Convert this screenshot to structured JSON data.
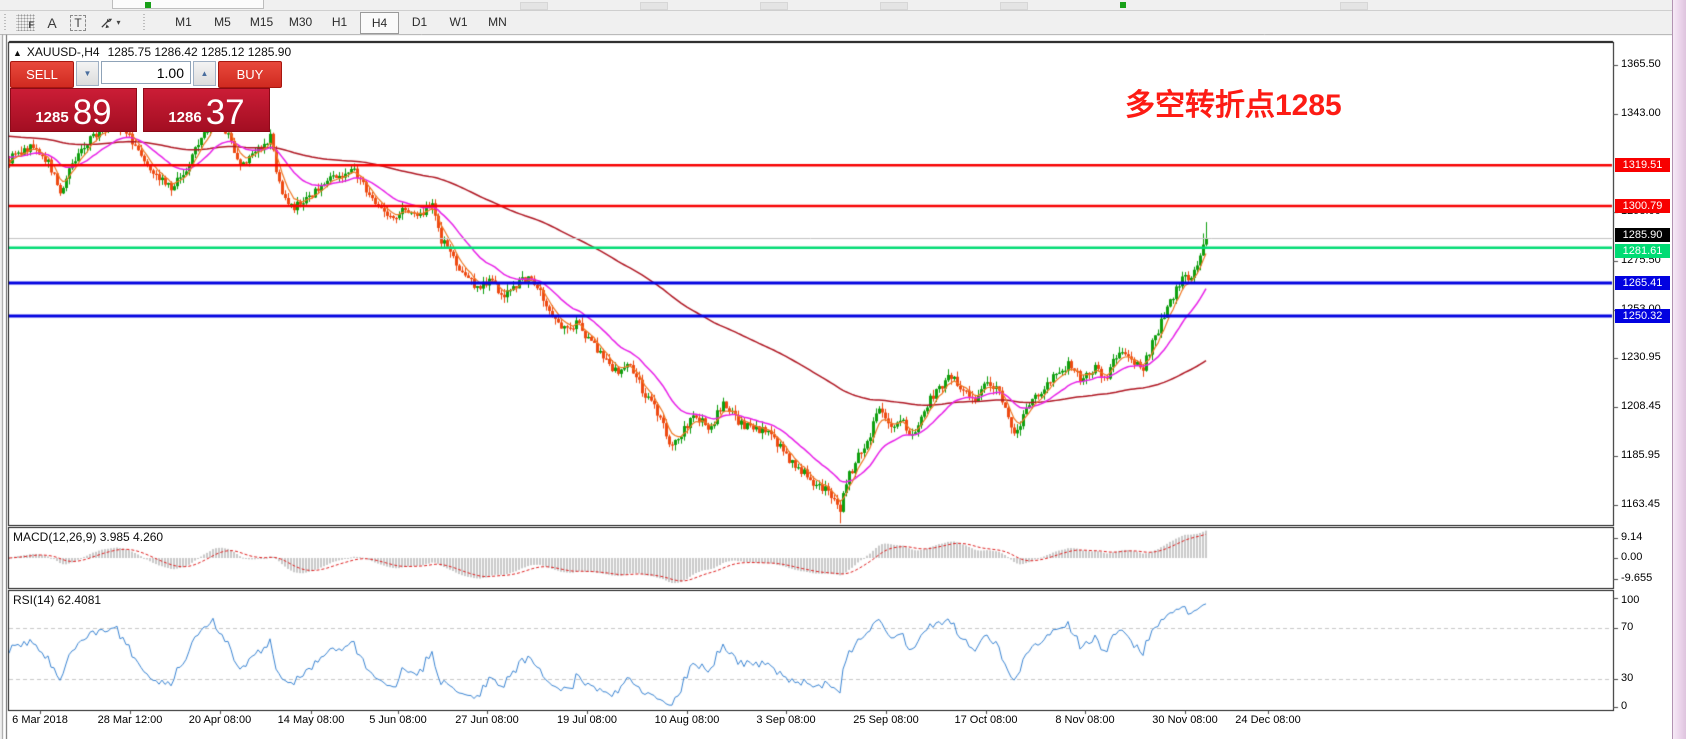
{
  "toolbar": {
    "tools": [
      {
        "name": "freehand-draw-tool",
        "glyph": "F"
      },
      {
        "name": "text-tool",
        "glyph": "A"
      },
      {
        "name": "text-label-tool",
        "glyph": "T"
      },
      {
        "name": "arrow-objects-tool",
        "glyph": "▾"
      }
    ],
    "timeframes": [
      "M1",
      "M5",
      "M15",
      "M30",
      "H1",
      "H4",
      "D1",
      "W1",
      "MN"
    ],
    "active_timeframe": "H4"
  },
  "chart_header": {
    "collapse_glyph": "▲",
    "symbol": "XAUUSD-,H4",
    "quotes": "1285.75 1286.42 1285.12 1285.90"
  },
  "trade_panel": {
    "sell_label": "SELL",
    "buy_label": "BUY",
    "volume": "1.00",
    "vol_down_glyph": "▼",
    "vol_up_glyph": "▲",
    "sell_price": {
      "small": "1285",
      "big": "89"
    },
    "buy_price": {
      "small": "1286",
      "big": "37"
    }
  },
  "annotation": {
    "text": "多空转折点1285",
    "color": "#fd1b14"
  },
  "chart_data": {
    "type": "candlestick",
    "symbol": "XAUUSD-",
    "timeframe": "H4",
    "ohlc_current": {
      "open": 1285.75,
      "high": 1286.42,
      "low": 1285.12,
      "close": 1285.9
    },
    "ylim": [
      1154,
      1376
    ],
    "price_axis_ticks": [
      1365.5,
      1343.0,
      1298.0,
      1275.5,
      1253.0,
      1230.95,
      1208.45,
      1185.95,
      1163.45
    ],
    "horizontal_lines": [
      {
        "price": 1319.51,
        "color": "#f80000",
        "width": 2.5,
        "type": "resistance"
      },
      {
        "price": 1300.79,
        "color": "#f80000",
        "width": 2.5,
        "type": "resistance"
      },
      {
        "price": 1285.9,
        "color": "#c2c2c2",
        "width": 1,
        "badge": "#000000",
        "type": "current-bid"
      },
      {
        "price": 1281.61,
        "color": "#00dc74",
        "width": 2.5,
        "type": "pivot"
      },
      {
        "price": 1265.41,
        "color": "#0202e0",
        "width": 3,
        "type": "support"
      },
      {
        "price": 1250.32,
        "color": "#0202e0",
        "width": 3,
        "type": "support"
      }
    ],
    "time_axis": {
      "labels": [
        "6 Mar 2018",
        "28 Mar 12:00",
        "20 Apr 08:00",
        "14 May 08:00",
        "5 Jun 08:00",
        "27 Jun 08:00",
        "19 Jul 08:00",
        "10 Aug 08:00",
        "3 Sep 08:00",
        "25 Sep 08:00",
        "17 Oct 08:00",
        "8 Nov 08:00",
        "30 Nov 08:00",
        "24 Dec 08:00"
      ],
      "x": [
        40,
        130,
        220,
        311,
        398,
        487,
        587,
        687,
        786,
        886,
        986,
        1085,
        1185,
        1268
      ]
    },
    "candle_colors": {
      "up": "#0fa00f",
      "down": "#ee4a12"
    },
    "price_path_anchors": [
      [
        9,
        1322
      ],
      [
        30,
        1328
      ],
      [
        48,
        1321
      ],
      [
        60,
        1307
      ],
      [
        72,
        1320
      ],
      [
        90,
        1332
      ],
      [
        115,
        1340
      ],
      [
        132,
        1331
      ],
      [
        150,
        1319
      ],
      [
        170,
        1309
      ],
      [
        182,
        1314
      ],
      [
        200,
        1331
      ],
      [
        213,
        1341
      ],
      [
        228,
        1333
      ],
      [
        242,
        1319
      ],
      [
        258,
        1327
      ],
      [
        270,
        1332
      ],
      [
        280,
        1309
      ],
      [
        292,
        1299
      ],
      [
        305,
        1304
      ],
      [
        320,
        1309
      ],
      [
        338,
        1315
      ],
      [
        352,
        1318
      ],
      [
        368,
        1307
      ],
      [
        382,
        1299
      ],
      [
        395,
        1294
      ],
      [
        405,
        1300
      ],
      [
        420,
        1297
      ],
      [
        432,
        1300
      ],
      [
        440,
        1286
      ],
      [
        452,
        1277
      ],
      [
        465,
        1269
      ],
      [
        478,
        1263
      ],
      [
        490,
        1268
      ],
      [
        502,
        1260
      ],
      [
        515,
        1264
      ],
      [
        527,
        1268
      ],
      [
        540,
        1261
      ],
      [
        552,
        1251
      ],
      [
        565,
        1243
      ],
      [
        577,
        1247
      ],
      [
        590,
        1239
      ],
      [
        602,
        1232
      ],
      [
        615,
        1225
      ],
      [
        630,
        1228
      ],
      [
        645,
        1213
      ],
      [
        658,
        1206
      ],
      [
        670,
        1191
      ],
      [
        681,
        1196
      ],
      [
        695,
        1205
      ],
      [
        710,
        1199
      ],
      [
        723,
        1211
      ],
      [
        737,
        1202
      ],
      [
        750,
        1199
      ],
      [
        765,
        1197
      ],
      [
        778,
        1191
      ],
      [
        790,
        1184
      ],
      [
        802,
        1179
      ],
      [
        815,
        1173
      ],
      [
        828,
        1171
      ],
      [
        840,
        1162
      ],
      [
        848,
        1176
      ],
      [
        858,
        1186
      ],
      [
        870,
        1196
      ],
      [
        878,
        1211
      ],
      [
        888,
        1199
      ],
      [
        900,
        1204
      ],
      [
        912,
        1194
      ],
      [
        925,
        1209
      ],
      [
        938,
        1217
      ],
      [
        950,
        1223
      ],
      [
        962,
        1217
      ],
      [
        975,
        1211
      ],
      [
        988,
        1221
      ],
      [
        1000,
        1214
      ],
      [
        1012,
        1196
      ],
      [
        1022,
        1203
      ],
      [
        1032,
        1212
      ],
      [
        1045,
        1218
      ],
      [
        1058,
        1224
      ],
      [
        1070,
        1229
      ],
      [
        1082,
        1221
      ],
      [
        1095,
        1227
      ],
      [
        1105,
        1221
      ],
      [
        1118,
        1235
      ],
      [
        1130,
        1231
      ],
      [
        1142,
        1226
      ],
      [
        1155,
        1241
      ],
      [
        1165,
        1251
      ],
      [
        1175,
        1262
      ],
      [
        1185,
        1270
      ],
      [
        1192,
        1267
      ],
      [
        1198,
        1276
      ],
      [
        1203,
        1283
      ],
      [
        1207,
        1286
      ]
    ],
    "moving_averages": [
      {
        "name": "fast",
        "color": "#ef7824",
        "alpha": 0.32
      },
      {
        "name": "medium",
        "color": "#e822e8",
        "alpha": 0.095
      },
      {
        "name": "slow",
        "color": "#b01824",
        "alpha": 0.016,
        "seed": 1333
      }
    ],
    "indicators": {
      "macd": {
        "display": "MACD(12,26,9) 3.985 4.260",
        "params": [
          12,
          26,
          9
        ],
        "current_macd": 3.985,
        "current_signal": 4.26,
        "axis_tick_labels": [
          "9.14",
          "0.00",
          "-9.655"
        ],
        "axis_tick_values": [
          9.14,
          0,
          -9.655
        ],
        "histogram_color": "#c9c9c9",
        "signal_color": "#e02424"
      },
      "rsi": {
        "display": "RSI(14) 62.4081",
        "period": 14,
        "current": 62.4081,
        "axis_tick_labels": [
          "100",
          "70",
          "30",
          "0"
        ],
        "axis_tick_values": [
          100,
          70,
          30,
          0
        ],
        "levels": [
          70,
          30
        ],
        "line_color": "#3c86d4"
      }
    }
  }
}
